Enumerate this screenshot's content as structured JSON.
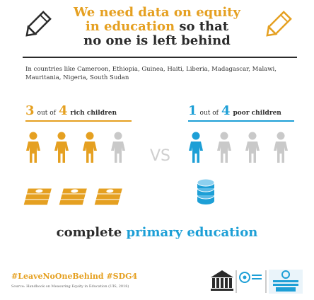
{
  "header": {
    "title_line1": "We need data on equity",
    "title_line2_gold": "in education",
    "title_line2_dark": "so that",
    "title_line3": "no one is left behind"
  },
  "countries_text": "In countries like Cameroon, Ethiopia, Guinea, Haiti, Liberia, Madagascar, Malawi, Mauritania, Nigeria, South Sudan",
  "rich": {
    "count": "3",
    "out_of": "out of",
    "total": "4",
    "label": "rich children",
    "filled": 3,
    "color": "#e5a021"
  },
  "poor": {
    "count": "1",
    "out_of": "out of",
    "total": "4",
    "label": "poor children",
    "filled": 1,
    "color": "#1d9fd6"
  },
  "vs": "VS",
  "caption": {
    "dark": "complete",
    "blue": "primary education"
  },
  "footer": {
    "hashtags": "#LeaveNoOneBehind #SDG4",
    "source": "Source: Handbook on Measuring Equity in Education (UIS, 2018)"
  },
  "colors": {
    "gold": "#e5a021",
    "blue": "#1d9fd6",
    "grey": "#c9c9c9",
    "dark": "#2b2b2b"
  }
}
